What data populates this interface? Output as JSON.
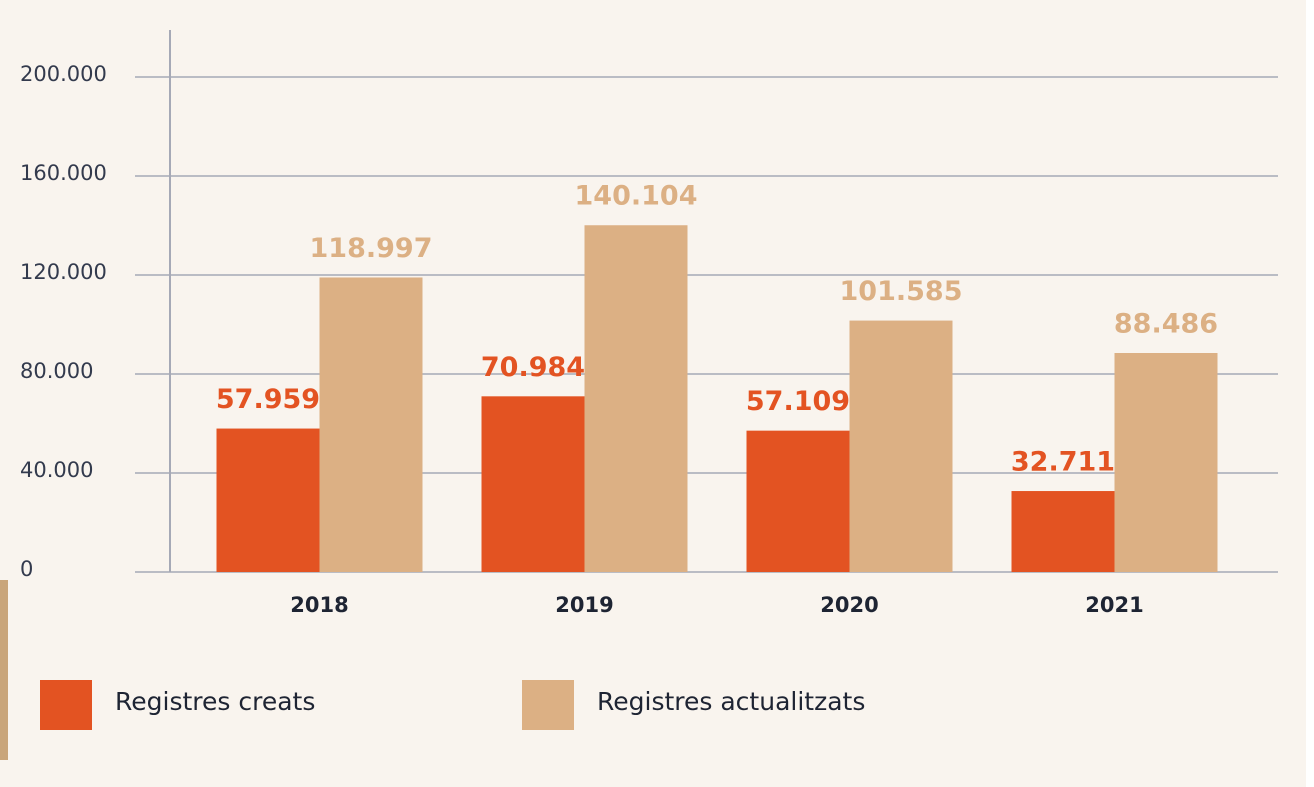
{
  "chart_data": {
    "type": "bar",
    "categories": [
      "2018",
      "2019",
      "2020",
      "2021"
    ],
    "series": [
      {
        "name": "Registres creats",
        "color": "#e35322",
        "values": [
          57959,
          70984,
          57109,
          32711
        ],
        "value_labels": [
          "57.959",
          "70.984",
          "57.109",
          "32.711"
        ]
      },
      {
        "name": "Registres actualitzats",
        "color": "#dcb084",
        "values": [
          118997,
          140104,
          101585,
          88486
        ],
        "value_labels": [
          "118.997",
          "140.104",
          "101.585",
          "88.486"
        ]
      }
    ],
    "ylim": [
      0,
      200000
    ],
    "yticks": [
      0,
      {
        "value": 40000,
        "label": "40.000"
      },
      {
        "value": 80000,
        "label": "80.000"
      },
      {
        "value": 120000,
        "label": "120.000"
      },
      {
        "value": 160000,
        "label": "160.000"
      },
      {
        "value": 200000,
        "label": "200.000"
      }
    ],
    "grid": true
  }
}
